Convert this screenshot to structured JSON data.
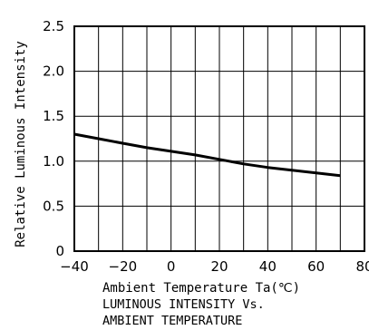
{
  "chart_data": {
    "type": "line",
    "title_lines": [
      "LUMINOUS INTENSITY Vs.",
      "AMBIENT TEMPERATURE"
    ],
    "xlabel": "Ambient Temperature Ta(℃)",
    "ylabel": "Relative Luminous Intensity",
    "xlim": [
      -40,
      80
    ],
    "ylim": [
      0,
      2.5
    ],
    "x_ticks": [
      -40,
      -20,
      0,
      20,
      40,
      60,
      80
    ],
    "x_tick_labels": [
      "−40",
      "−20",
      "0",
      "20",
      "40",
      "60",
      "80"
    ],
    "y_ticks": [
      0,
      0.5,
      1.0,
      1.5,
      2.0,
      2.5
    ],
    "y_tick_labels": [
      "0",
      "0.5",
      "1.0",
      "1.5",
      "2.0",
      "2.5"
    ],
    "grid": true,
    "x_minor_step": 10,
    "series": [
      {
        "x": [
          -40,
          -30,
          -20,
          -10,
          0,
          10,
          20,
          30,
          40,
          50,
          60,
          70
        ],
        "y": [
          1.3,
          1.25,
          1.2,
          1.15,
          1.11,
          1.07,
          1.02,
          0.97,
          0.93,
          0.9,
          0.87,
          0.84
        ]
      }
    ]
  }
}
